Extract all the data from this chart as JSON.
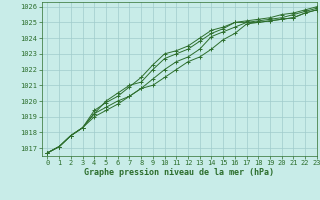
{
  "title": "Graphe pression niveau de la mer (hPa)",
  "bg_color": "#c8ece8",
  "grid_color": "#a0cccc",
  "line_color": "#2d6e2d",
  "marker": "+",
  "xlim": [
    -0.5,
    23
  ],
  "ylim": [
    1016.5,
    1026.3
  ],
  "yticks": [
    1017,
    1018,
    1019,
    1020,
    1021,
    1022,
    1023,
    1024,
    1025,
    1026
  ],
  "xticks": [
    0,
    1,
    2,
    3,
    4,
    5,
    6,
    7,
    8,
    9,
    10,
    11,
    12,
    13,
    14,
    15,
    16,
    17,
    18,
    19,
    20,
    21,
    22,
    23
  ],
  "series": [
    [
      1016.7,
      1017.1,
      1017.8,
      1018.3,
      1019.0,
      1019.4,
      1019.8,
      1020.3,
      1020.8,
      1021.4,
      1022.0,
      1022.5,
      1022.8,
      1023.3,
      1024.1,
      1024.4,
      1024.7,
      1025.0,
      1025.0,
      1025.1,
      1025.2,
      1025.3,
      1025.6,
      1025.8
    ],
    [
      1016.7,
      1017.1,
      1017.8,
      1018.3,
      1019.2,
      1019.6,
      1020.0,
      1020.3,
      1020.8,
      1021.0,
      1021.5,
      1022.0,
      1022.5,
      1022.8,
      1023.3,
      1023.9,
      1024.3,
      1024.9,
      1025.0,
      1025.1,
      1025.2,
      1025.3,
      1025.6,
      1025.8
    ],
    [
      1016.7,
      1017.1,
      1017.8,
      1018.3,
      1019.2,
      1020.0,
      1020.5,
      1021.0,
      1021.2,
      1022.0,
      1022.7,
      1023.0,
      1023.3,
      1023.8,
      1024.3,
      1024.6,
      1025.0,
      1025.0,
      1025.1,
      1025.2,
      1025.3,
      1025.5,
      1025.7,
      1025.9
    ],
    [
      1016.7,
      1017.1,
      1017.8,
      1018.3,
      1019.4,
      1019.9,
      1020.3,
      1020.9,
      1021.5,
      1022.3,
      1023.0,
      1023.2,
      1023.5,
      1024.0,
      1024.5,
      1024.7,
      1025.0,
      1025.1,
      1025.2,
      1025.3,
      1025.5,
      1025.6,
      1025.8,
      1026.0
    ]
  ],
  "title_fontsize": 6.0,
  "tick_fontsize": 5.0,
  "linewidth": 0.7,
  "markersize": 3.0
}
